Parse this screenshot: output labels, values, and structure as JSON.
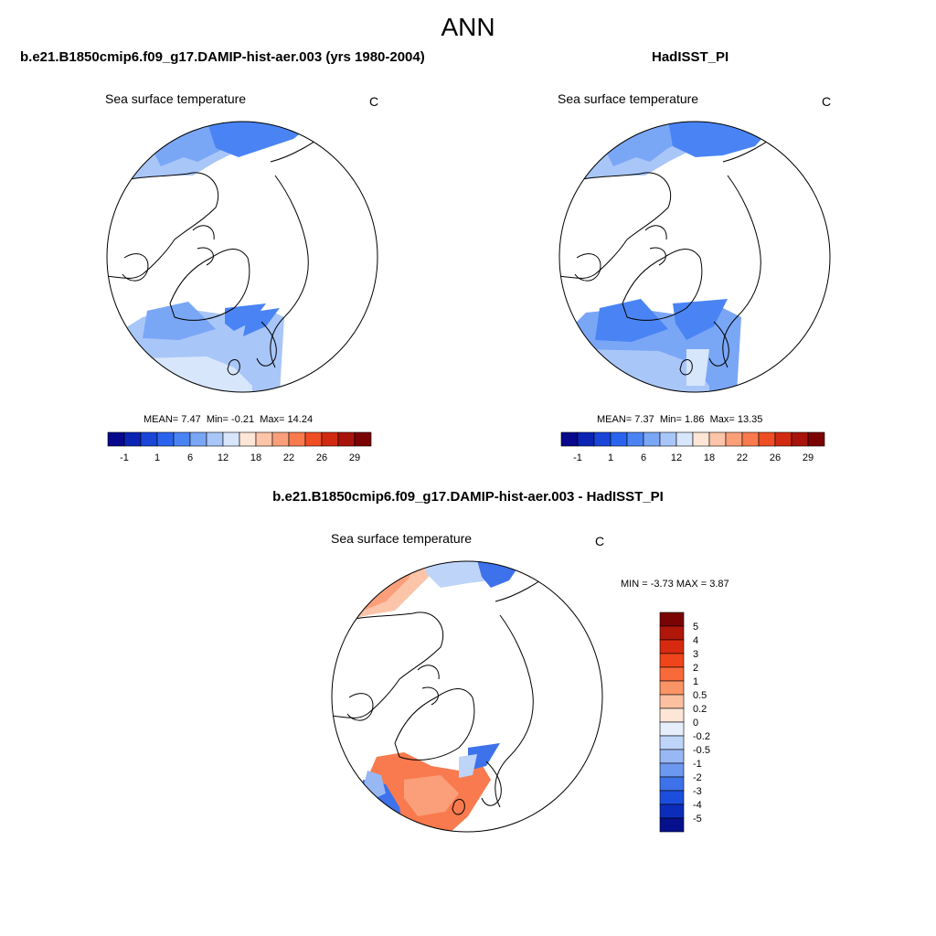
{
  "title": "ANN",
  "panels": [
    {
      "title": "b.e21.B1850cmip6.f09_g17.DAMIP-hist-aer.003 (yrs 1980-2004)",
      "variable": "Sea surface temperature",
      "units": "C",
      "stats": {
        "mean_label": "MEAN=",
        "mean": "7.47",
        "min_label": "Min=",
        "min": "-0.21",
        "max_label": "Max=",
        "max": "14.24"
      }
    },
    {
      "title": "HadISST_PI",
      "variable": "Sea surface temperature",
      "units": "C",
      "stats": {
        "mean_label": "MEAN=",
        "mean": "7.37",
        "min_label": "Min=",
        "min": "1.86",
        "max_label": "Max=",
        "max": "13.35"
      }
    },
    {
      "title": "b.e21.B1850cmip6.f09_g17.DAMIP-hist-aer.003 - HadISST_PI",
      "variable": "Sea surface temperature",
      "units": "C",
      "stats": {
        "min_label": "MIN =",
        "min": "-3.73",
        "max_label": "MAX =",
        "max": "3.87"
      }
    }
  ],
  "colorbar_abs": {
    "colors": [
      "#08088c",
      "#0c24b4",
      "#1a46d8",
      "#2a64ee",
      "#4a84f4",
      "#7aa6f6",
      "#a9c6f8",
      "#d8e6fb",
      "#fde6d6",
      "#fcc4a8",
      "#fb9f7a",
      "#f97a4e",
      "#ef4d22",
      "#d22a10",
      "#a8140a",
      "#7a0404"
    ],
    "labels": [
      "-1",
      "1",
      "6",
      "12",
      "18",
      "22",
      "26",
      "29"
    ]
  },
  "colorbar_diff": {
    "colors": [
      "#7a0404",
      "#b0160a",
      "#d82a0e",
      "#f0451a",
      "#f96a3a",
      "#fb9466",
      "#fcc0a0",
      "#fde6d6",
      "#e6eefb",
      "#bed4f8",
      "#98b8f4",
      "#6c98f0",
      "#3e72ea",
      "#1c4ede",
      "#0c2cbc",
      "#06108c"
    ],
    "labels": [
      "5",
      "4",
      "3",
      "2",
      "1",
      "0.5",
      "0.2",
      "0",
      "-0.2",
      "-0.5",
      "-1",
      "-2",
      "-3",
      "-4",
      "-5"
    ]
  },
  "map_colors": {
    "light": "#d8e6fb",
    "pale": "#a9c6f8",
    "mid": "#7aa6f6",
    "blue": "#4a84f4",
    "deep": "#2a64ee",
    "warm1": "#fcc4a8",
    "warm2": "#fb9f7a",
    "warm3": "#f97a4e"
  }
}
